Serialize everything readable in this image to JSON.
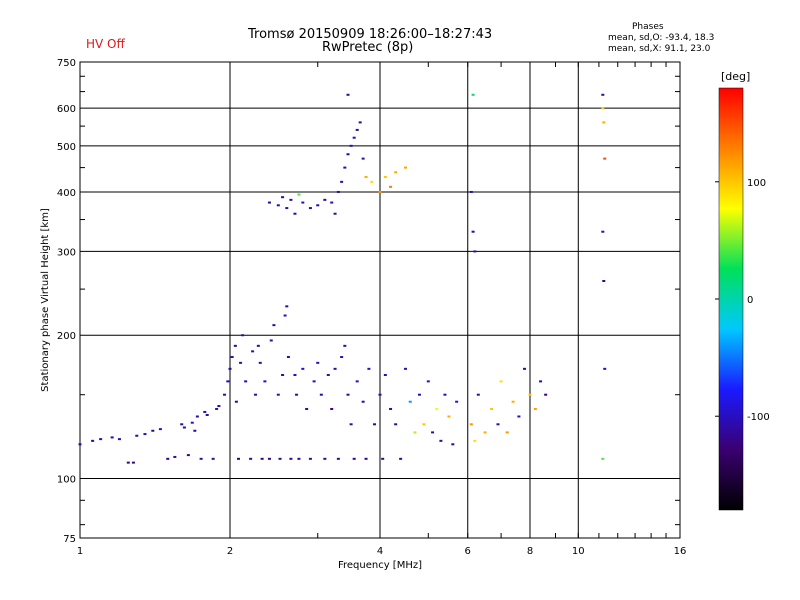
{
  "header": {
    "status": "HV Off",
    "title_line1": "Tromsø 20150909 18:26:00–18:27:43",
    "title_line2": "RwPretec (8p)"
  },
  "phase_info": {
    "title": "Phases",
    "line1": "mean, sd,O: -93.4, 18.3",
    "line2": "mean, sd,X:  91.1, 23.0"
  },
  "colors": {
    "status": "#e01818",
    "grid": "#000000",
    "scale": [
      "#000000",
      "#3a0070",
      "#1a1aff",
      "#00c8ff",
      "#00e05a",
      "#ffff00",
      "#ff8000",
      "#ff0000"
    ]
  },
  "chart_data": {
    "type": "scatter",
    "xlabel": "Frequency [MHz]",
    "ylabel": "Stationary phase Virtual Height [km]",
    "x_scale": "log",
    "y_scale": "log",
    "xlim": [
      1,
      16
    ],
    "ylim": [
      75,
      750
    ],
    "x_ticks": [
      1,
      2,
      4,
      6,
      8,
      10,
      16
    ],
    "y_ticks": [
      75,
      100,
      200,
      300,
      400,
      500,
      600,
      750
    ],
    "x_gridlines": [
      2,
      4,
      6,
      8,
      10
    ],
    "y_gridlines": [
      100,
      200,
      300,
      400,
      500,
      600
    ],
    "colorbar": {
      "label": "[deg]",
      "ticks": [
        100,
        0,
        -100
      ],
      "range": [
        -180,
        180
      ]
    },
    "points": [
      [
        1.0,
        118,
        -110
      ],
      [
        1.06,
        120,
        -115
      ],
      [
        1.1,
        121,
        -105
      ],
      [
        1.16,
        122,
        -110
      ],
      [
        1.2,
        121,
        -100
      ],
      [
        1.25,
        108,
        -120
      ],
      [
        1.28,
        108,
        -115
      ],
      [
        1.3,
        123,
        -110
      ],
      [
        1.35,
        124,
        -100
      ],
      [
        1.4,
        126,
        -115
      ],
      [
        1.45,
        127,
        -95
      ],
      [
        1.5,
        110,
        -118
      ],
      [
        1.55,
        111,
        -108
      ],
      [
        1.6,
        130,
        -110
      ],
      [
        1.62,
        128,
        -105
      ],
      [
        1.65,
        112,
        -120
      ],
      [
        1.68,
        131,
        -90
      ],
      [
        1.7,
        126,
        -112
      ],
      [
        1.72,
        135,
        -108
      ],
      [
        1.75,
        110,
        -100
      ],
      [
        1.78,
        138,
        -105
      ],
      [
        1.8,
        136,
        -118
      ],
      [
        1.85,
        110,
        -110
      ],
      [
        1.88,
        140,
        -95
      ],
      [
        1.9,
        142,
        -110
      ],
      [
        1.95,
        150,
        -105
      ],
      [
        1.98,
        160,
        -110
      ],
      [
        2.0,
        170,
        -112
      ],
      [
        2.02,
        180,
        -100
      ],
      [
        2.05,
        190,
        -118
      ],
      [
        2.06,
        145,
        -110
      ],
      [
        2.08,
        110,
        -120
      ],
      [
        2.1,
        175,
        -105
      ],
      [
        2.12,
        200,
        -108
      ],
      [
        2.15,
        160,
        -110
      ],
      [
        2.2,
        110,
        -112
      ],
      [
        2.22,
        185,
        -100
      ],
      [
        2.25,
        150,
        -105
      ],
      [
        2.28,
        190,
        -110
      ],
      [
        2.3,
        175,
        -108
      ],
      [
        2.32,
        110,
        -115
      ],
      [
        2.35,
        160,
        -100
      ],
      [
        2.4,
        110,
        -120
      ],
      [
        2.42,
        195,
        -105
      ],
      [
        2.45,
        210,
        -110
      ],
      [
        2.5,
        150,
        -95
      ],
      [
        2.52,
        110,
        -115
      ],
      [
        2.55,
        165,
        -105
      ],
      [
        2.58,
        220,
        -100
      ],
      [
        2.6,
        230,
        -110
      ],
      [
        2.62,
        180,
        -108
      ],
      [
        2.65,
        110,
        -112
      ],
      [
        2.7,
        165,
        -100
      ],
      [
        2.72,
        150,
        -105
      ],
      [
        2.75,
        110,
        -115
      ],
      [
        2.8,
        170,
        -95
      ],
      [
        2.85,
        140,
        -110
      ],
      [
        2.9,
        110,
        -108
      ],
      [
        2.95,
        160,
        -100
      ],
      [
        3.0,
        175,
        -105
      ],
      [
        3.05,
        150,
        -110
      ],
      [
        3.1,
        110,
        -115
      ],
      [
        3.15,
        165,
        -100
      ],
      [
        3.2,
        140,
        -120
      ],
      [
        3.25,
        170,
        -105
      ],
      [
        3.3,
        110,
        -112
      ],
      [
        3.35,
        180,
        -100
      ],
      [
        3.4,
        190,
        -108
      ],
      [
        3.45,
        150,
        -110
      ],
      [
        3.5,
        130,
        -105
      ],
      [
        3.55,
        110,
        -115
      ],
      [
        3.6,
        160,
        -100
      ],
      [
        3.7,
        145,
        -105
      ],
      [
        3.75,
        110,
        -118
      ],
      [
        3.8,
        170,
        -95
      ],
      [
        3.9,
        130,
        -110
      ],
      [
        4.0,
        150,
        -100
      ],
      [
        4.05,
        110,
        -112
      ],
      [
        4.1,
        165,
        -108
      ],
      [
        4.2,
        140,
        -105
      ],
      [
        4.3,
        130,
        -110
      ],
      [
        4.4,
        110,
        -115
      ],
      [
        4.5,
        170,
        -100
      ],
      [
        4.6,
        145,
        -40
      ],
      [
        4.7,
        125,
        60
      ],
      [
        4.8,
        150,
        -100
      ],
      [
        4.9,
        130,
        100
      ],
      [
        5.0,
        160,
        -95
      ],
      [
        5.1,
        125,
        -110
      ],
      [
        5.2,
        140,
        80
      ],
      [
        5.3,
        120,
        -105
      ],
      [
        5.4,
        150,
        -100
      ],
      [
        5.5,
        135,
        110
      ],
      [
        5.6,
        118,
        -115
      ],
      [
        5.7,
        145,
        -90
      ],
      [
        6.1,
        130,
        120
      ],
      [
        6.2,
        120,
        90
      ],
      [
        6.3,
        150,
        -100
      ],
      [
        6.5,
        125,
        110
      ],
      [
        6.7,
        140,
        100
      ],
      [
        6.9,
        130,
        -105
      ],
      [
        7.0,
        160,
        90
      ],
      [
        7.2,
        125,
        120
      ],
      [
        7.4,
        145,
        110
      ],
      [
        7.6,
        135,
        -100
      ],
      [
        7.8,
        170,
        -110
      ],
      [
        8.0,
        150,
        100
      ],
      [
        8.2,
        140,
        115
      ],
      [
        8.4,
        160,
        -105
      ],
      [
        8.6,
        150,
        -120
      ],
      [
        2.4,
        380,
        -110
      ],
      [
        2.5,
        375,
        -105
      ],
      [
        2.55,
        390,
        -115
      ],
      [
        2.6,
        370,
        -100
      ],
      [
        2.65,
        385,
        -110
      ],
      [
        2.7,
        360,
        -108
      ],
      [
        2.75,
        395,
        40
      ],
      [
        2.8,
        380,
        -95
      ],
      [
        2.9,
        370,
        -105
      ],
      [
        3.0,
        375,
        -110
      ],
      [
        3.1,
        385,
        -115
      ],
      [
        3.2,
        380,
        -100
      ],
      [
        3.25,
        360,
        -110
      ],
      [
        3.3,
        400,
        -105
      ],
      [
        3.35,
        420,
        -100
      ],
      [
        3.4,
        450,
        -110
      ],
      [
        3.45,
        480,
        -115
      ],
      [
        3.5,
        500,
        -105
      ],
      [
        3.55,
        520,
        -100
      ],
      [
        3.6,
        540,
        -110
      ],
      [
        3.65,
        560,
        -108
      ],
      [
        3.45,
        640,
        -112
      ],
      [
        3.7,
        470,
        -100
      ],
      [
        3.75,
        430,
        110
      ],
      [
        3.85,
        420,
        90
      ],
      [
        4.0,
        400,
        120
      ],
      [
        4.1,
        430,
        100
      ],
      [
        4.2,
        410,
        130
      ],
      [
        4.3,
        440,
        110
      ],
      [
        4.5,
        450,
        115
      ],
      [
        6.1,
        400,
        -105
      ],
      [
        6.15,
        330,
        -110
      ],
      [
        6.2,
        300,
        -100
      ],
      [
        6.15,
        640,
        20
      ],
      [
        11.2,
        640,
        -110
      ],
      [
        11.2,
        600,
        100
      ],
      [
        11.25,
        560,
        110
      ],
      [
        11.3,
        470,
        150
      ],
      [
        11.2,
        330,
        -105
      ],
      [
        11.25,
        260,
        -115
      ],
      [
        11.3,
        170,
        -100
      ],
      [
        11.2,
        110,
        40
      ]
    ]
  }
}
